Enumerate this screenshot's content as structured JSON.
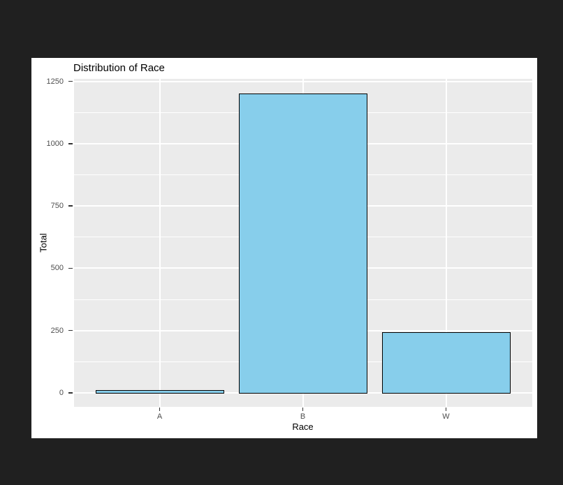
{
  "window": {
    "background": "#202020"
  },
  "chart_data": {
    "type": "bar",
    "title": "Distribution of Race",
    "xlabel": "Race",
    "ylabel": "Total",
    "categories": [
      "A",
      "B",
      "W"
    ],
    "values": [
      12,
      1200,
      243
    ],
    "ylim": [
      0,
      1250
    ],
    "yticks": [
      0,
      250,
      500,
      750,
      1000,
      1250
    ],
    "yticks_minor": [
      125,
      375,
      625,
      875,
      1125
    ],
    "grid": "on",
    "legend": "none",
    "style": "ggplot2-grey-theme",
    "colors": {
      "figure_bg": "#ffffff",
      "panel_bg": "#ebebeb",
      "grid_major": "#ffffff",
      "grid_minor": "#ffffff",
      "bar_fill": "#87ceeb",
      "bar_stroke": "#000000",
      "tick_label": "#4d4d4d",
      "tick_mark": "#333333",
      "axis_title": "#000000",
      "title": "#000000"
    }
  }
}
